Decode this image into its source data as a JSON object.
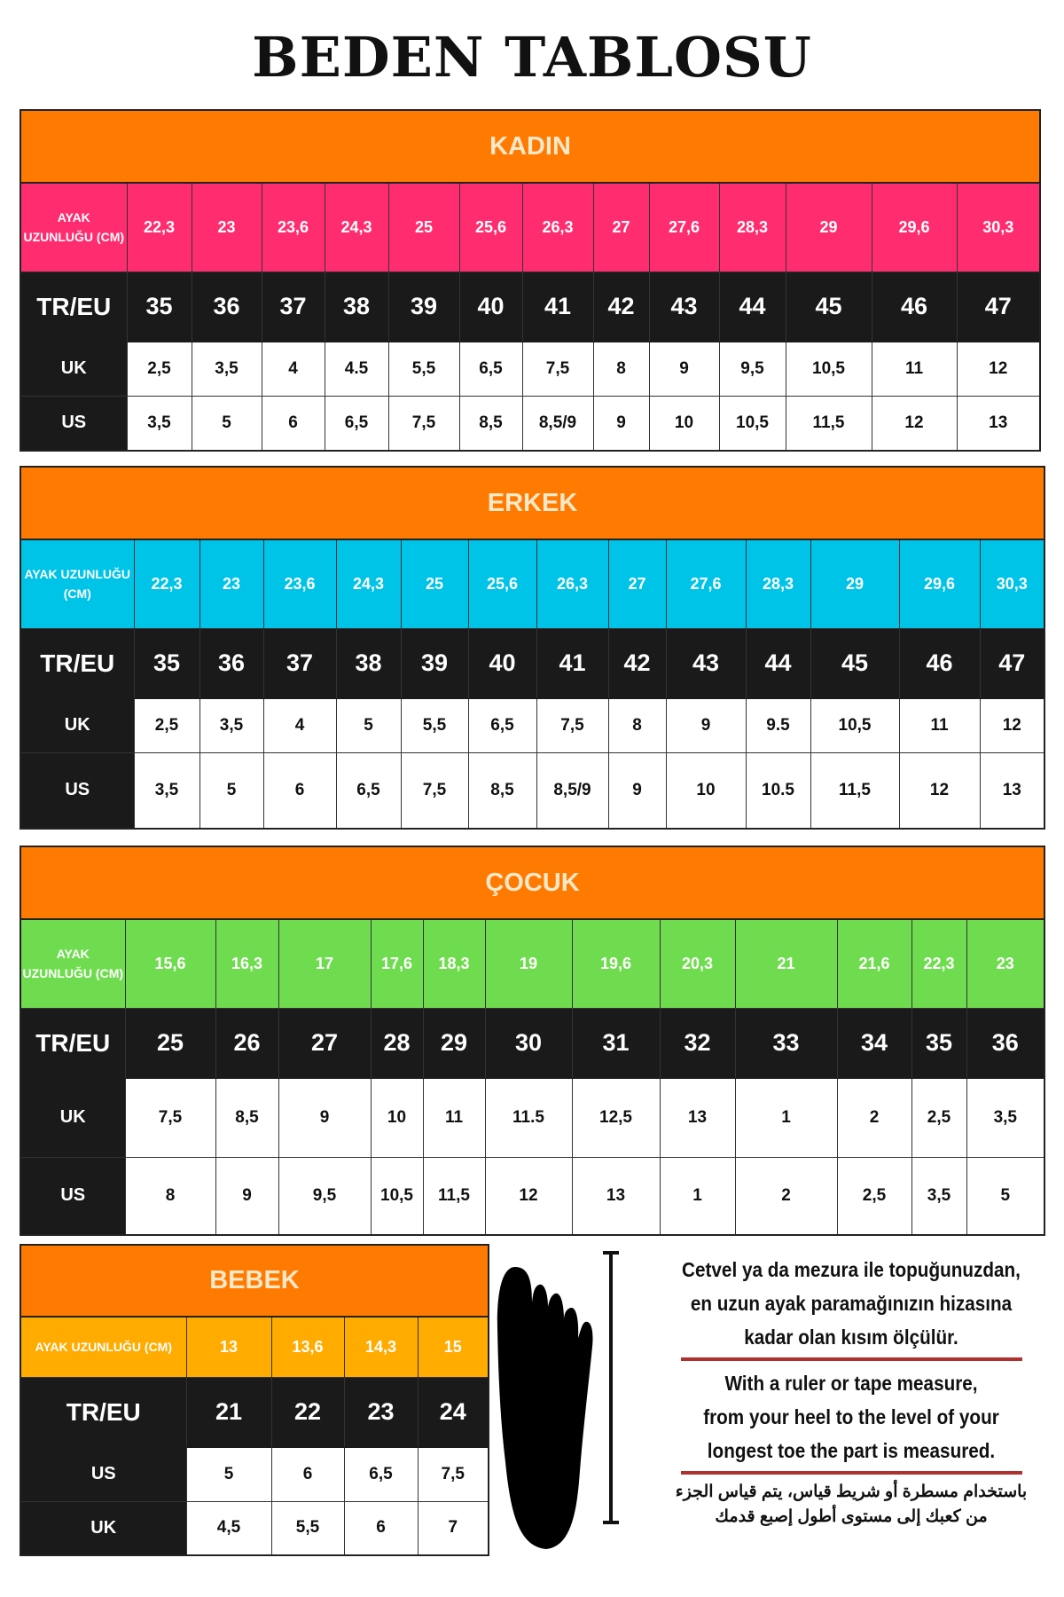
{
  "title": "BEDEN TABLOSU",
  "labels": {
    "length": "AYAK UZUNLUĞU (CM)",
    "eu": "TR/EU",
    "uk": "UK",
    "us": "US"
  },
  "colors": {
    "header": "#ff7a00",
    "kadin": "#ff2d6f",
    "erkek": "#00c3e8",
    "cocuk": "#6fdc4f",
    "bebek": "#ffab00"
  },
  "tables": [
    {
      "name": "KADIN",
      "length": [
        "22,3",
        "23",
        "23,6",
        "24,3",
        "25",
        "25,6",
        "26,3",
        "27",
        "27,6",
        "28,3",
        "29",
        "29,6",
        "30,3"
      ],
      "eu": [
        "35",
        "36",
        "37",
        "38",
        "39",
        "40",
        "41",
        "42",
        "43",
        "44",
        "45",
        "46",
        "47"
      ],
      "uk": [
        "2,5",
        "3,5",
        "4",
        "4.5",
        "5,5",
        "6,5",
        "7,5",
        "8",
        "9",
        "9,5",
        "10,5",
        "11",
        "12"
      ],
      "us": [
        "3,5",
        "5",
        "6",
        "6,5",
        "7,5",
        "8,5",
        "8,5/9",
        "9",
        "10",
        "10,5",
        "11,5",
        "12",
        "13"
      ]
    },
    {
      "name": "ERKEK",
      "length": [
        "22,3",
        "23",
        "23,6",
        "24,3",
        "25",
        "25,6",
        "26,3",
        "27",
        "27,6",
        "28,3",
        "29",
        "29,6",
        "30,3"
      ],
      "eu": [
        "35",
        "36",
        "37",
        "38",
        "39",
        "40",
        "41",
        "42",
        "43",
        "44",
        "45",
        "46",
        "47"
      ],
      "uk": [
        "2,5",
        "3,5",
        "4",
        "5",
        "5,5",
        "6,5",
        "7,5",
        "8",
        "9",
        "9.5",
        "10,5",
        "11",
        "12"
      ],
      "us": [
        "3,5",
        "5",
        "6",
        "6,5",
        "7,5",
        "8,5",
        "8,5/9",
        "9",
        "10",
        "10.5",
        "11,5",
        "12",
        "13"
      ]
    },
    {
      "name": "ÇOCUK",
      "length": [
        "15,6",
        "16,3",
        "17",
        "17,6",
        "18,3",
        "19",
        "19,6",
        "20,3",
        "21",
        "21,6",
        "22,3",
        "23"
      ],
      "eu": [
        "25",
        "26",
        "27",
        "28",
        "29",
        "30",
        "31",
        "32",
        "33",
        "34",
        "35",
        "36"
      ],
      "uk": [
        "7,5",
        "8,5",
        "9",
        "10",
        "11",
        "11.5",
        "12,5",
        "13",
        "1",
        "2",
        "2,5",
        "3,5"
      ],
      "us": [
        "8",
        "9",
        "9,5",
        "10,5",
        "11,5",
        "12",
        "13",
        "1",
        "2",
        "2,5",
        "3,5",
        "5"
      ]
    },
    {
      "name": "BEBEK",
      "length": [
        "13",
        "13,6",
        "14,3",
        "15"
      ],
      "eu": [
        "21",
        "22",
        "23",
        "24"
      ],
      "us": [
        "5",
        "6",
        "6,5",
        "7,5"
      ],
      "uk": [
        "4,5",
        "5,5",
        "6",
        "7"
      ]
    }
  ],
  "instructions": {
    "tr": [
      "Cetvel ya da mezura ile topuğunuzdan,",
      "en uzun ayak paramağınızın hizasına",
      "kadar olan kısım ölçülür."
    ],
    "en": [
      "With a ruler or tape measure,",
      "from your heel to the level of your",
      "longest toe the part is measured."
    ],
    "ar": [
      "باستخدام مسطرة أو شريط قياس، يتم قياس الجزء",
      "من كعبك إلى مستوى أطول إصبع قدمك"
    ]
  }
}
